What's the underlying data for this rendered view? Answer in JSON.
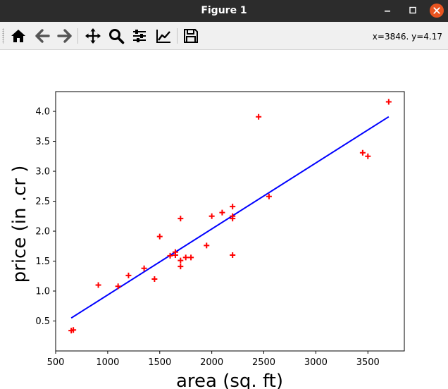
{
  "window": {
    "title": "Figure 1",
    "buttons": [
      "minimize-icon",
      "maximize-icon",
      "close-icon"
    ],
    "close_color": "#e95420"
  },
  "toolbar": {
    "buttons": [
      "home-icon",
      "back-arrow-icon",
      "forward-arrow-icon",
      "pan-move-icon",
      "zoom-magnifier-icon",
      "configure-subplots-icon",
      "edit-axis-curves-icon",
      "save-floppy-icon"
    ],
    "coords": "x=3846. y=4.17"
  },
  "chart_data": {
    "type": "scatter",
    "title": "",
    "xlabel": "area (sq. ft)",
    "ylabel": "price (in .cr )",
    "xlim": [
      500,
      3850
    ],
    "ylim": [
      0,
      4.33
    ],
    "xticks": [
      500,
      1000,
      1500,
      2000,
      2500,
      3000,
      3500
    ],
    "yticks": [
      0.5,
      1.0,
      1.5,
      2.0,
      2.5,
      3.0,
      3.5,
      4.0
    ],
    "ytick_labels": [
      "0.5",
      "1.0",
      "1.5",
      "2.0",
      "2.5",
      "3.0",
      "3.5",
      "4.0"
    ],
    "grid": false,
    "series": [
      {
        "kind": "scatter",
        "marker": "+",
        "color": "#ff0000",
        "points": [
          [
            650,
            0.34
          ],
          [
            670,
            0.35
          ],
          [
            910,
            1.1
          ],
          [
            1100,
            1.08
          ],
          [
            1200,
            1.26
          ],
          [
            1350,
            1.38
          ],
          [
            1450,
            1.2
          ],
          [
            1500,
            1.91
          ],
          [
            1600,
            1.59
          ],
          [
            1650,
            1.6
          ],
          [
            1650,
            1.65
          ],
          [
            1700,
            2.21
          ],
          [
            1700,
            1.51
          ],
          [
            1700,
            1.41
          ],
          [
            1750,
            1.56
          ],
          [
            1800,
            1.56
          ],
          [
            1950,
            1.76
          ],
          [
            2000,
            2.25
          ],
          [
            2100,
            2.31
          ],
          [
            2200,
            2.41
          ],
          [
            2200,
            2.21
          ],
          [
            2200,
            2.25
          ],
          [
            2200,
            1.6
          ],
          [
            2450,
            3.91
          ],
          [
            2550,
            2.58
          ],
          [
            3450,
            3.31
          ],
          [
            3500,
            3.25
          ],
          [
            3700,
            4.16
          ]
        ]
      },
      {
        "kind": "line",
        "color": "#0000ff",
        "x": [
          650,
          3700
        ],
        "y": [
          0.55,
          3.91
        ]
      }
    ]
  }
}
